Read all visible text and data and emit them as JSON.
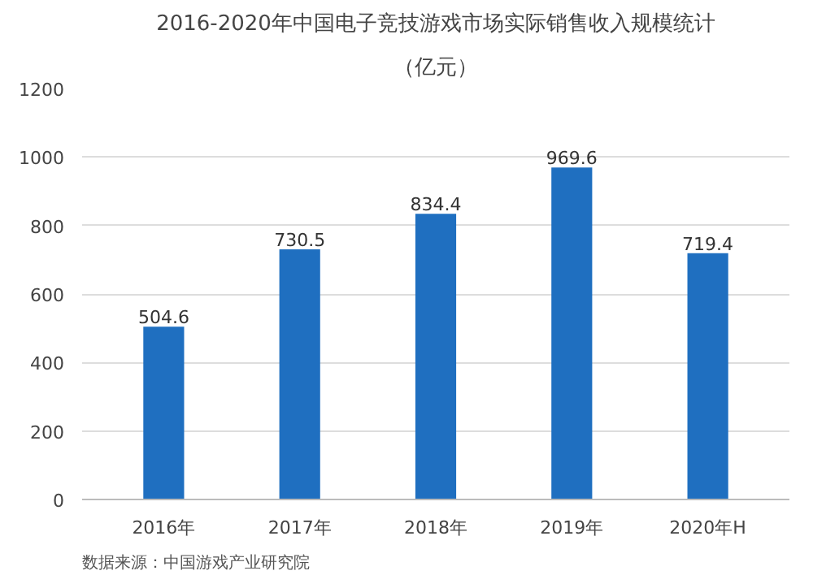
{
  "chart_data": {
    "type": "bar",
    "title": "2016-2020年中国电子竞技游戏市场实际销售收入规模统计",
    "subtitle": "（亿元）",
    "categories": [
      "2016年",
      "2017年",
      "2018年",
      "2019年",
      "2020年H"
    ],
    "values": [
      504.6,
      730.5,
      834.4,
      969.6,
      719.4
    ],
    "color": "#1f6fc0",
    "ylim": [
      0,
      1200
    ],
    "yticks": [
      0,
      200,
      400,
      600,
      800,
      1000,
      1200
    ],
    "grid": "y",
    "data_labels": true,
    "annotations": [
      "数据来源：中国游戏产业研究院"
    ]
  }
}
